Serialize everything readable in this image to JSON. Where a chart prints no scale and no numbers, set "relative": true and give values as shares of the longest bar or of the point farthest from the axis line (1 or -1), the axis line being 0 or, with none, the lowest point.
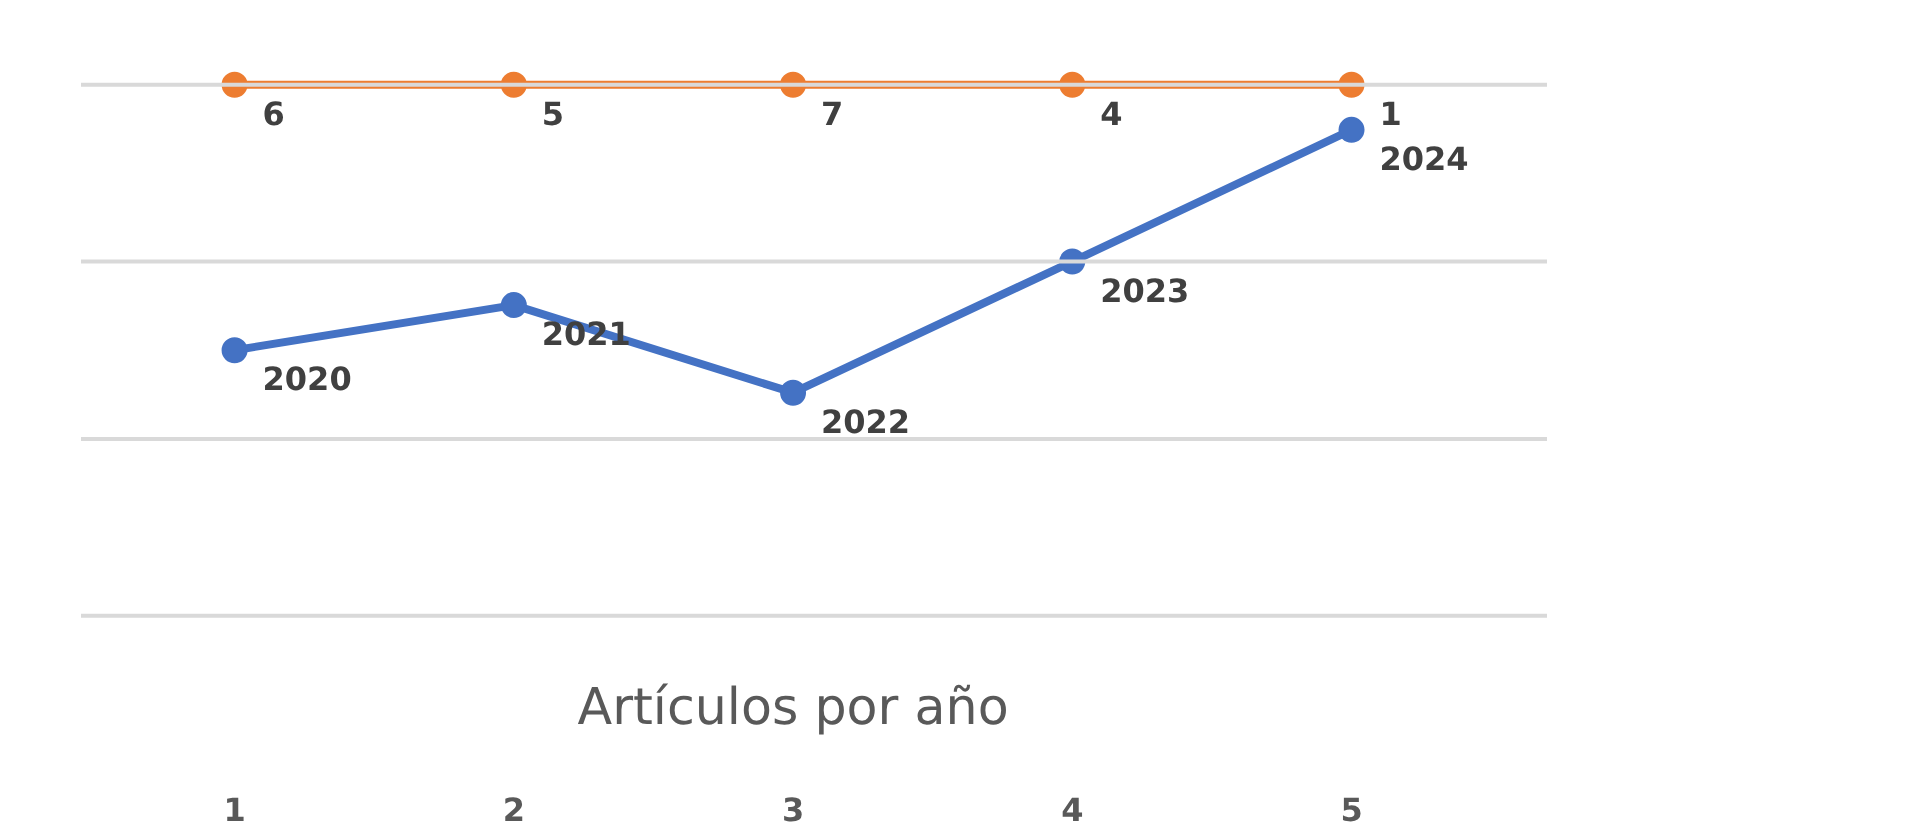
{
  "chart_data": {
    "type": "line",
    "title": "Artículos por año",
    "relative": true,
    "categories": [
      "1",
      "2",
      "3",
      "4",
      "5"
    ],
    "series": [
      {
        "color": "#ed7d31",
        "values": [
          1,
          1,
          1,
          1,
          1
        ]
      },
      {
        "color": "#4472c4",
        "values": [
          0.5,
          0.585,
          0.42,
          0.667,
          0.915
        ]
      }
    ],
    "annotations": [
      {
        "text": "6",
        "x": "1",
        "y": 1
      },
      {
        "text": "5",
        "x": "2",
        "y": 1
      },
      {
        "text": "7",
        "x": "3",
        "y": 1
      },
      {
        "text": "4",
        "x": "4",
        "y": 1
      },
      {
        "text": "1",
        "x": "5",
        "y": 1
      },
      {
        "text": "2020",
        "x": "1",
        "y": 0.5
      },
      {
        "text": "2021",
        "x": "2",
        "y": 0.585
      },
      {
        "text": "2022",
        "x": "3",
        "y": 0.42
      },
      {
        "text": "2023",
        "x": "4",
        "y": 0.667
      },
      {
        "text": "2024",
        "x": "5",
        "y": 0.915
      }
    ],
    "ref_lines": [
      {
        "axis": "y",
        "value": 0,
        "color": "#d9d9d9"
      },
      {
        "axis": "y",
        "value": 0.333,
        "color": "#d9d9d9"
      },
      {
        "axis": "y",
        "value": 0.667,
        "color": "#d9d9d9"
      },
      {
        "axis": "y",
        "value": 1,
        "color": "#d9d9d9"
      }
    ],
    "marker": "circle",
    "line_style": "solid"
  }
}
